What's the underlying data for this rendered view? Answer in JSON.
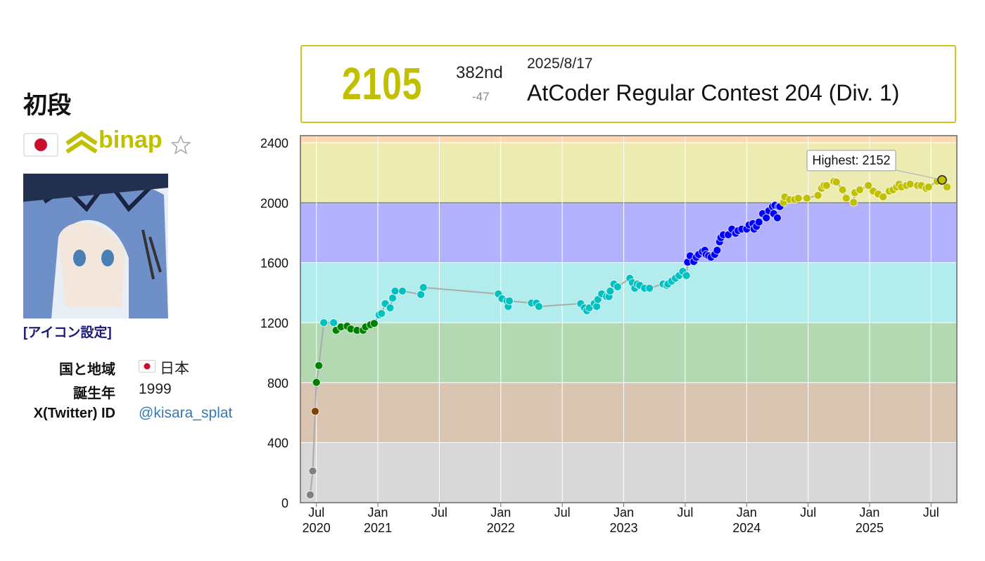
{
  "profile": {
    "rank": "初段",
    "user": "binap",
    "icon_link": "[アイコン設定]",
    "details": [
      [
        "国と地域",
        "日本"
      ],
      [
        "誕生年",
        1999
      ],
      [
        "X(Twitter) ID",
        "@kisara_splat"
      ]
    ]
  },
  "latest": {
    "rating": 2105,
    "place": "382nd",
    "diff": -47,
    "date": "2025/8/17",
    "contest": "AtCoder Regular Contest 204 (Div. 1)"
  },
  "chart_data": {
    "type": "line",
    "x": [
      2020.45,
      2020.47,
      2020.49,
      2020.5,
      2020.52,
      2020.56,
      2020.64,
      2020.66,
      2020.7,
      2020.75,
      2020.78,
      2020.83,
      2020.88,
      2020.9,
      2020.94,
      2020.97,
      2021.01,
      2021.03,
      2021.06,
      2021.1,
      2021.12,
      2021.14,
      2021.2,
      2021.35,
      2021.37,
      2021.98,
      2022.01,
      2022.05,
      2022.06,
      2022.07,
      2022.25,
      2022.29,
      2022.31,
      2022.65,
      2022.68,
      2022.7,
      2022.72,
      2022.76,
      2022.78,
      2022.79,
      2022.82,
      2022.86,
      2022.88,
      2022.89,
      2022.92,
      2022.95,
      2023.05,
      2023.07,
      2023.09,
      2023.11,
      2023.13,
      2023.17,
      2023.21,
      2023.32,
      2023.35,
      2023.36,
      2023.39,
      2023.42,
      2023.45,
      2023.48,
      2023.51,
      2023.52,
      2023.54,
      2023.57,
      2023.59,
      2023.61,
      2023.64,
      2023.66,
      2023.67,
      2023.69,
      2023.71,
      2023.74,
      2023.76,
      2023.78,
      2023.79,
      2023.81,
      2023.85,
      2023.88,
      2023.91,
      2023.93,
      2023.96,
      2024.0,
      2024.02,
      2024.05,
      2024.06,
      2024.08,
      2024.1,
      2024.13,
      2024.16,
      2024.18,
      2024.21,
      2024.22,
      2024.23,
      2024.25,
      2024.26,
      2024.27,
      2024.3,
      2024.31,
      2024.35,
      2024.39,
      2024.42,
      2024.49,
      2024.58,
      2024.61,
      2024.63,
      2024.65,
      2024.71,
      2024.73,
      2024.78,
      2024.81,
      2024.87,
      2024.88,
      2024.92,
      2024.99,
      2025.03,
      2025.07,
      2025.11,
      2025.16,
      2025.19,
      2025.22,
      2025.24,
      2025.26,
      2025.3,
      2025.33,
      2025.39,
      2025.42,
      2025.46,
      2025.48,
      2025.55,
      2025.59,
      2025.63
    ],
    "values": [
      52,
      211,
      609,
      802,
      914,
      1200,
      1200,
      1149,
      1172,
      1177,
      1158,
      1149,
      1149,
      1172,
      1186,
      1195,
      1252,
      1261,
      1327,
      1299,
      1364,
      1411,
      1411,
      1388,
      1435,
      1392,
      1360,
      1345,
      1308,
      1345,
      1331,
      1331,
      1308,
      1327,
      1299,
      1280,
      1299,
      1327,
      1308,
      1355,
      1392,
      1374,
      1374,
      1411,
      1458,
      1439,
      1496,
      1467,
      1430,
      1458,
      1449,
      1430,
      1430,
      1458,
      1449,
      1458,
      1477,
      1496,
      1514,
      1542,
      1514,
      1604,
      1646,
      1608,
      1636,
      1655,
      1674,
      1683,
      1655,
      1646,
      1636,
      1655,
      1683,
      1739,
      1767,
      1786,
      1786,
      1824,
      1796,
      1814,
      1824,
      1824,
      1852,
      1861,
      1824,
      1842,
      1871,
      1927,
      1899,
      1946,
      1974,
      1927,
      1983,
      1899,
      1974,
      1974,
      2002,
      2039,
      2021,
      2021,
      2030,
      2030,
      2049,
      2096,
      2115,
      2115,
      2143,
      2138,
      2086,
      2030,
      2002,
      2067,
      2086,
      2115,
      2077,
      2058,
      2039,
      2077,
      2086,
      2105,
      2124,
      2105,
      2115,
      2124,
      2115,
      2115,
      2096,
      2105,
      2143,
      2152,
      2105
    ],
    "line_color": "#aaaaaa",
    "xlim": [
      2020.37,
      2025.71
    ],
    "ylim": [
      0,
      2447
    ],
    "yticks": [
      0,
      400,
      800,
      1200,
      1600,
      2000,
      2400
    ],
    "xticks": [
      {
        "value": 2020.5,
        "label": "Jul\n2020"
      },
      {
        "value": 2021,
        "label": "Jan\n2021"
      },
      {
        "value": 2021.5,
        "label": "Jul"
      },
      {
        "value": 2022,
        "label": "Jan\n2022"
      },
      {
        "value": 2022.5,
        "label": "Jul"
      },
      {
        "value": 2023,
        "label": "Jan\n2023"
      },
      {
        "value": 2023.5,
        "label": "Jul"
      },
      {
        "value": 2024,
        "label": "Jan\n2024"
      },
      {
        "value": 2024.5,
        "label": "Jul"
      },
      {
        "value": 2025,
        "label": "Jan\n2025"
      },
      {
        "value": 2025.5,
        "label": "Jul"
      }
    ],
    "bands": [
      {
        "from": 0,
        "color": "#d8d8d8",
        "point_color": "#808080"
      },
      {
        "from": 400,
        "color": "#d9c5b2",
        "point_color": "#804000"
      },
      {
        "from": 800,
        "color": "#b2d9b2",
        "point_color": "#008000"
      },
      {
        "from": 1200,
        "color": "#b2ecec",
        "point_color": "#00c0c0"
      },
      {
        "from": 1600,
        "color": "#b2b2ff",
        "point_color": "#0000ff"
      },
      {
        "from": 2000,
        "color": "#ececb2",
        "point_color": "#c0c000"
      },
      {
        "from": 2400,
        "color": "#ffd9b2",
        "point_color": "#ff8000"
      }
    ],
    "grid": true,
    "annotation": "Highest: 2152"
  }
}
